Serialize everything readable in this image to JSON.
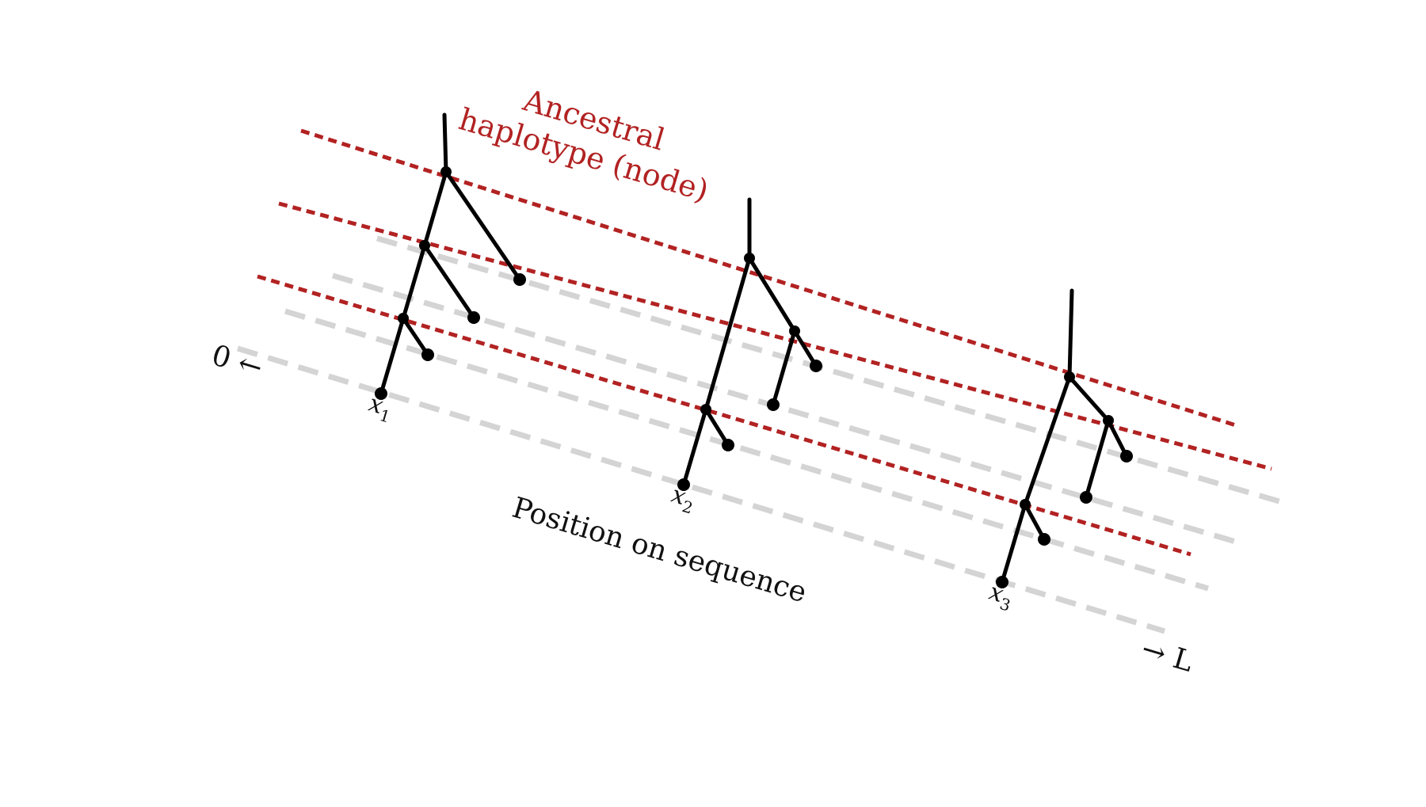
{
  "annotation": {
    "line1": "Ancestral",
    "line2": "haplotype (node)",
    "color": "#b22222"
  },
  "axis": {
    "start_label": "0 ←",
    "end_label": "→ L",
    "title": "Position on sequence"
  },
  "leaves": [
    {
      "base": "x",
      "sub": "1"
    },
    {
      "base": "x",
      "sub": "2"
    },
    {
      "base": "x",
      "sub": "3"
    }
  ],
  "colors": {
    "ancestral_line": "#b22222",
    "sample_line": "#d4d4d4",
    "tree": "#000000"
  }
}
